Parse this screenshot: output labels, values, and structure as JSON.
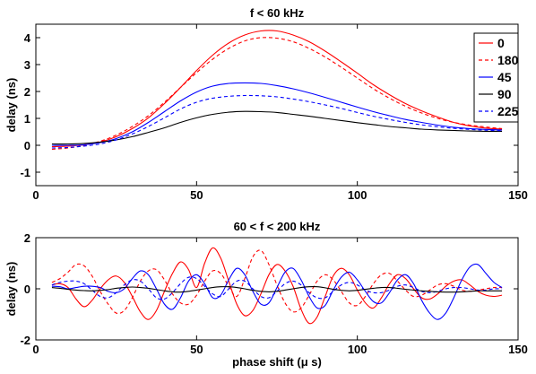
{
  "chart_data": [
    {
      "type": "line",
      "title": "f < 60 kHz",
      "xlabel": "",
      "ylabel": "delay (ns)",
      "xlim": [
        0,
        150
      ],
      "ylim": [
        -1.5,
        4.5
      ],
      "xticks": [
        0,
        50,
        100,
        150
      ],
      "yticks": [
        -1,
        0,
        1,
        2,
        3,
        4
      ],
      "grid": false,
      "legend": {
        "placement": "top-right"
      },
      "x": [
        5,
        10,
        15,
        20,
        25,
        30,
        35,
        40,
        45,
        50,
        55,
        60,
        65,
        70,
        75,
        80,
        85,
        90,
        95,
        100,
        105,
        110,
        115,
        120,
        125,
        130,
        135,
        140,
        145
      ],
      "series": [
        {
          "name": "0",
          "color": "#ff0000",
          "dash": "solid",
          "values": [
            -0.05,
            -0.03,
            0.02,
            0.12,
            0.32,
            0.62,
            1.02,
            1.55,
            2.15,
            2.78,
            3.35,
            3.8,
            4.1,
            4.25,
            4.25,
            4.1,
            3.85,
            3.5,
            3.1,
            2.68,
            2.25,
            1.88,
            1.55,
            1.28,
            1.05,
            0.85,
            0.72,
            0.64,
            0.6
          ]
        },
        {
          "name": "180",
          "color": "#ff0000",
          "dash": "dashed",
          "values": [
            -0.15,
            -0.1,
            0.0,
            0.15,
            0.38,
            0.7,
            1.1,
            1.6,
            2.15,
            2.7,
            3.2,
            3.6,
            3.88,
            4.0,
            3.98,
            3.85,
            3.6,
            3.28,
            2.9,
            2.5,
            2.1,
            1.75,
            1.45,
            1.2,
            1.0,
            0.85,
            0.75,
            0.68,
            0.62
          ]
        },
        {
          "name": "45",
          "color": "#0000ff",
          "dash": "solid",
          "values": [
            0.0,
            0.0,
            0.02,
            0.1,
            0.25,
            0.5,
            0.85,
            1.25,
            1.65,
            1.98,
            2.2,
            2.3,
            2.32,
            2.3,
            2.22,
            2.1,
            1.95,
            1.78,
            1.6,
            1.42,
            1.25,
            1.1,
            0.96,
            0.85,
            0.75,
            0.67,
            0.62,
            0.59,
            0.57
          ]
        },
        {
          "name": "90",
          "color": "#000000",
          "dash": "solid",
          "values": [
            0.05,
            0.05,
            0.07,
            0.12,
            0.2,
            0.32,
            0.48,
            0.65,
            0.85,
            1.02,
            1.15,
            1.23,
            1.26,
            1.25,
            1.22,
            1.15,
            1.08,
            1.0,
            0.92,
            0.84,
            0.77,
            0.7,
            0.65,
            0.6,
            0.57,
            0.55,
            0.53,
            0.52,
            0.52
          ]
        },
        {
          "name": "225",
          "color": "#0000ff",
          "dash": "dashed",
          "values": [
            -0.1,
            -0.08,
            -0.03,
            0.05,
            0.2,
            0.42,
            0.7,
            1.02,
            1.35,
            1.6,
            1.75,
            1.82,
            1.85,
            1.84,
            1.8,
            1.72,
            1.62,
            1.5,
            1.37,
            1.22,
            1.08,
            0.96,
            0.85,
            0.76,
            0.69,
            0.63,
            0.59,
            0.56,
            0.54
          ]
        }
      ]
    },
    {
      "type": "line",
      "title": "60 < f < 200 kHz",
      "xlabel": "phase shift (μ s)",
      "ylabel": "delay (ns)",
      "xlim": [
        0,
        150
      ],
      "ylim": [
        -2,
        2
      ],
      "xticks": [
        0,
        50,
        100,
        150
      ],
      "yticks": [
        -2,
        0,
        2
      ],
      "grid": false,
      "x": [
        5,
        7.5,
        10,
        12.5,
        15,
        17.5,
        20,
        22.5,
        25,
        27.5,
        30,
        32.5,
        35,
        37.5,
        40,
        42.5,
        45,
        47.5,
        50,
        52.5,
        55,
        57.5,
        60,
        62.5,
        65,
        67.5,
        70,
        72.5,
        75,
        77.5,
        80,
        82.5,
        85,
        87.5,
        90,
        92.5,
        95,
        97.5,
        100,
        102.5,
        105,
        107.5,
        110,
        112.5,
        115,
        117.5,
        120,
        122.5,
        125,
        127.5,
        130,
        132.5,
        135,
        137.5,
        140,
        142.5,
        145
      ],
      "series": [
        {
          "name": "",
          "color": "#ff0000",
          "dash": "solid",
          "values": [
            0.15,
            0.2,
            0.05,
            -0.4,
            -0.7,
            -0.45,
            0.0,
            0.35,
            0.5,
            0.25,
            -0.3,
            -0.9,
            -1.2,
            -0.85,
            -0.1,
            0.6,
            1.05,
            0.75,
            0.05,
            1.0,
            1.6,
            1.2,
            0.3,
            -0.6,
            -1.05,
            -0.85,
            -0.2,
            0.55,
            0.95,
            0.7,
            0.1,
            -0.8,
            -1.35,
            -1.1,
            -0.3,
            0.5,
            0.8,
            0.55,
            -0.05,
            -0.55,
            -0.75,
            -0.35,
            0.2,
            0.55,
            0.4,
            0.0,
            -0.35,
            -0.4,
            -0.2,
            0.1,
            0.3,
            0.35,
            0.15,
            -0.1,
            -0.25,
            -0.3,
            -0.25
          ]
        },
        {
          "name": "",
          "color": "#ff0000",
          "dash": "dashed",
          "values": [
            0.25,
            0.4,
            0.65,
            0.95,
            0.9,
            0.5,
            -0.1,
            -0.6,
            -0.95,
            -0.85,
            -0.35,
            0.3,
            0.7,
            0.75,
            0.35,
            -0.2,
            -0.55,
            -0.6,
            -0.25,
            0.3,
            0.7,
            0.6,
            0.1,
            -0.3,
            0.4,
            1.25,
            1.5,
            0.95,
            0.15,
            -0.55,
            -0.9,
            -0.75,
            -0.25,
            0.3,
            0.55,
            0.35,
            -0.1,
            -0.55,
            -0.65,
            -0.3,
            0.2,
            0.55,
            0.6,
            0.3,
            -0.05,
            -0.3,
            -0.25,
            -0.05,
            0.15,
            0.2,
            0.1,
            -0.05,
            -0.1,
            -0.05,
            0.0,
            0.05,
            0.05
          ]
        },
        {
          "name": "",
          "color": "#0000ff",
          "dash": "solid",
          "values": [
            0.1,
            0.08,
            0.0,
            0.05,
            0.1,
            0.1,
            0.05,
            -0.1,
            -0.15,
            0.0,
            0.4,
            0.7,
            0.55,
            0.0,
            -0.6,
            -0.8,
            -0.35,
            0.3,
            0.55,
            0.2,
            -0.35,
            -0.25,
            0.35,
            0.8,
            0.55,
            -0.1,
            -0.6,
            -0.55,
            0.05,
            0.65,
            0.8,
            0.35,
            -0.3,
            -0.75,
            -0.65,
            -0.05,
            0.45,
            0.65,
            0.35,
            -0.1,
            -0.5,
            -0.55,
            -0.15,
            0.35,
            0.55,
            0.2,
            -0.45,
            -0.95,
            -1.2,
            -0.95,
            -0.35,
            0.35,
            0.85,
            0.95,
            0.6,
            0.25,
            0.05
          ]
        },
        {
          "name": "",
          "color": "#0000ff",
          "dash": "dashed",
          "values": [
            0.15,
            0.25,
            0.3,
            0.3,
            0.2,
            -0.05,
            -0.3,
            -0.35,
            -0.15,
            0.15,
            0.35,
            0.3,
            0.0,
            -0.35,
            -0.4,
            -0.15,
            0.2,
            0.45,
            0.4,
            0.1,
            -0.2,
            -0.3,
            0.0,
            0.3,
            0.3,
            0.0,
            -0.3,
            -0.35,
            -0.1,
            0.2,
            0.3,
            0.15,
            -0.15,
            -0.35,
            -0.35,
            -0.1,
            0.15,
            0.25,
            0.15,
            -0.05,
            -0.15,
            -0.15,
            -0.05,
            0.1,
            0.15,
            0.05,
            -0.1,
            -0.15,
            -0.1,
            0.0,
            0.05,
            0.05,
            0.0,
            -0.05,
            -0.05,
            0.0,
            0.0
          ]
        },
        {
          "name": "",
          "color": "#000000",
          "dash": "solid",
          "values": [
            0.05,
            0.02,
            -0.02,
            -0.05,
            -0.07,
            -0.08,
            -0.06,
            -0.03,
            0.02,
            0.05,
            0.07,
            0.05,
            0.02,
            -0.03,
            -0.08,
            -0.12,
            -0.13,
            -0.1,
            -0.05,
            0.0,
            0.05,
            0.08,
            0.08,
            0.05,
            0.0,
            -0.06,
            -0.1,
            -0.12,
            -0.1,
            -0.05,
            0.0,
            0.05,
            0.08,
            0.08,
            0.04,
            -0.02,
            -0.06,
            -0.08,
            -0.06,
            -0.02,
            0.02,
            0.05,
            0.05,
            0.02,
            -0.02,
            -0.05,
            -0.08,
            -0.1,
            -0.12,
            -0.13,
            -0.13,
            -0.12,
            -0.1,
            -0.08,
            -0.08,
            -0.08,
            -0.08
          ]
        }
      ]
    }
  ]
}
